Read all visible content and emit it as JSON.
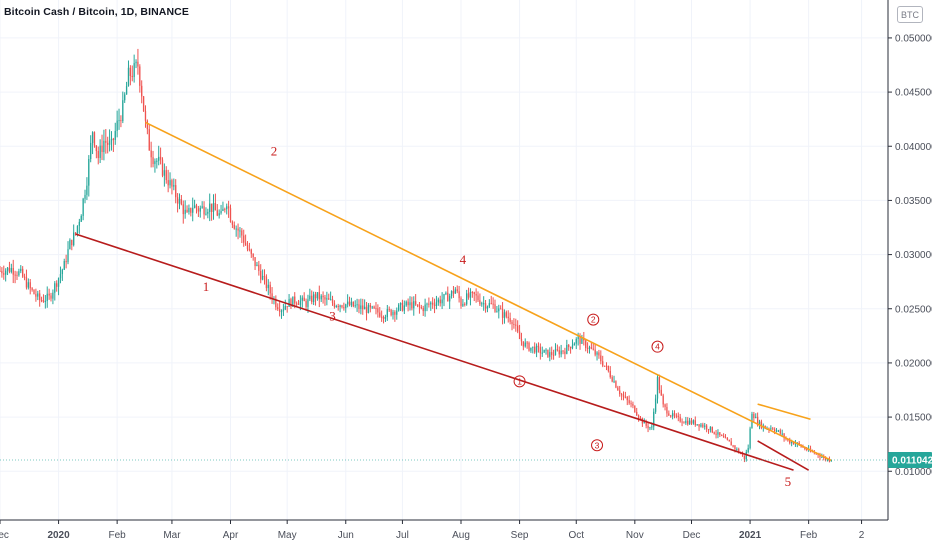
{
  "header": {
    "title": "Bitcoin Cash / Bitcoin, 1D, BINANCE",
    "currency_badge": "BTC"
  },
  "colors": {
    "up": "#26a69a",
    "down": "#ef5350",
    "orange_trend": "#f7a21b",
    "red_trend": "#b71c1c",
    "label": "#c81c1c",
    "last_price_bg": "#26a69a"
  },
  "chart_data": {
    "type": "candlestick",
    "title": "Bitcoin Cash / Bitcoin, 1D, BINANCE",
    "xlabel": "",
    "ylabel": "",
    "ylim": [
      0.0055,
      0.0535
    ],
    "y_ticks": [
      "0.050000",
      "0.045000",
      "0.040000",
      "0.035000",
      "0.030000",
      "0.025000",
      "0.020000",
      "0.015000",
      "0.010000"
    ],
    "y_tick_values": [
      0.05,
      0.045,
      0.04,
      0.035,
      0.03,
      0.025,
      0.02,
      0.015,
      0.01
    ],
    "x_ticks": [
      "Dec",
      "2020",
      "Feb",
      "Mar",
      "Apr",
      "May",
      "Jun",
      "Jul",
      "Aug",
      "Sep",
      "Oct",
      "Nov",
      "Dec",
      "2021",
      "Feb",
      "2"
    ],
    "x_tick_days": [
      -31,
      0,
      31,
      60,
      91,
      121,
      152,
      182,
      213,
      244,
      274,
      305,
      335,
      366,
      397,
      425
    ],
    "x_range_days": [
      -31,
      439
    ],
    "last_price": "0.011042",
    "last_price_value": 0.011042,
    "series_close": [
      [
        -31,
        0.0285
      ],
      [
        -25,
        0.0287
      ],
      [
        -20,
        0.0282
      ],
      [
        -15,
        0.0268
      ],
      [
        -10,
        0.0258
      ],
      [
        -5,
        0.026
      ],
      [
        -1,
        0.0275
      ],
      [
        3,
        0.029
      ],
      [
        6,
        0.031
      ],
      [
        9,
        0.032
      ],
      [
        12,
        0.034
      ],
      [
        15,
        0.037
      ],
      [
        18,
        0.0415
      ],
      [
        21,
        0.039
      ],
      [
        24,
        0.0405
      ],
      [
        28,
        0.04
      ],
      [
        31,
        0.042
      ],
      [
        34,
        0.0435
      ],
      [
        37,
        0.0465
      ],
      [
        40,
        0.047
      ],
      [
        42,
        0.0475
      ],
      [
        44,
        0.045
      ],
      [
        46,
        0.042
      ],
      [
        48,
        0.04
      ],
      [
        50,
        0.039
      ],
      [
        53,
        0.0385
      ],
      [
        56,
        0.0375
      ],
      [
        59,
        0.0365
      ],
      [
        62,
        0.0355
      ],
      [
        65,
        0.0345
      ],
      [
        68,
        0.0335
      ],
      [
        71,
        0.0345
      ],
      [
        74,
        0.0342
      ],
      [
        77,
        0.0343
      ],
      [
        80,
        0.0345
      ],
      [
        83,
        0.034
      ],
      [
        86,
        0.0335
      ],
      [
        89,
        0.035
      ],
      [
        91,
        0.0335
      ],
      [
        94,
        0.0325
      ],
      [
        97,
        0.0318
      ],
      [
        100,
        0.0305
      ],
      [
        103,
        0.0295
      ],
      [
        106,
        0.0285
      ],
      [
        109,
        0.0275
      ],
      [
        112,
        0.0265
      ],
      [
        115,
        0.0255
      ],
      [
        118,
        0.025
      ],
      [
        121,
        0.0255
      ],
      [
        126,
        0.0258
      ],
      [
        131,
        0.0255
      ],
      [
        136,
        0.0262
      ],
      [
        141,
        0.0258
      ],
      [
        146,
        0.0255
      ],
      [
        152,
        0.0254
      ],
      [
        157,
        0.0252
      ],
      [
        162,
        0.025
      ],
      [
        167,
        0.0248
      ],
      [
        172,
        0.0245
      ],
      [
        177,
        0.0248
      ],
      [
        182,
        0.0252
      ],
      [
        187,
        0.0254
      ],
      [
        192,
        0.025
      ],
      [
        197,
        0.0255
      ],
      [
        202,
        0.0258
      ],
      [
        207,
        0.0262
      ],
      [
        210,
        0.0268
      ],
      [
        213,
        0.0255
      ],
      [
        216,
        0.026
      ],
      [
        220,
        0.0262
      ],
      [
        225,
        0.0255
      ],
      [
        230,
        0.0253
      ],
      [
        235,
        0.0245
      ],
      [
        240,
        0.024
      ],
      [
        244,
        0.0222
      ],
      [
        248,
        0.0215
      ],
      [
        252,
        0.0213
      ],
      [
        256,
        0.021
      ],
      [
        260,
        0.0208
      ],
      [
        264,
        0.021
      ],
      [
        268,
        0.0212
      ],
      [
        272,
        0.0218
      ],
      [
        275,
        0.0222
      ],
      [
        278,
        0.0218
      ],
      [
        282,
        0.0212
      ],
      [
        286,
        0.0205
      ],
      [
        290,
        0.0195
      ],
      [
        294,
        0.0183
      ],
      [
        298,
        0.017
      ],
      [
        302,
        0.0163
      ],
      [
        305,
        0.0157
      ],
      [
        308,
        0.0148
      ],
      [
        311,
        0.0142
      ],
      [
        314,
        0.014
      ],
      [
        317,
        0.0185
      ],
      [
        320,
        0.016
      ],
      [
        324,
        0.0152
      ],
      [
        328,
        0.0148
      ],
      [
        332,
        0.0146
      ],
      [
        336,
        0.0145
      ],
      [
        340,
        0.0143
      ],
      [
        344,
        0.014
      ],
      [
        348,
        0.0135
      ],
      [
        352,
        0.013
      ],
      [
        356,
        0.0125
      ],
      [
        360,
        0.0118
      ],
      [
        363,
        0.0112
      ],
      [
        365,
        0.0122
      ],
      [
        367,
        0.0155
      ],
      [
        370,
        0.0145
      ],
      [
        374,
        0.014
      ],
      [
        378,
        0.014
      ],
      [
        382,
        0.0135
      ],
      [
        386,
        0.0128
      ],
      [
        390,
        0.0126
      ],
      [
        394,
        0.0122
      ],
      [
        398,
        0.0118
      ],
      [
        402,
        0.0116
      ],
      [
        405,
        0.0112
      ],
      [
        409,
        0.011042
      ]
    ],
    "trendlines": [
      {
        "color": "orange",
        "points": [
          [
            46,
            0.0422
          ],
          [
            409,
            0.011
          ]
        ]
      },
      {
        "color": "red",
        "points": [
          [
            9,
            0.0319
          ],
          [
            389,
            0.0101
          ]
        ]
      },
      {
        "color": "orange",
        "points": [
          [
            370,
            0.0162
          ],
          [
            398,
            0.0148
          ]
        ]
      },
      {
        "color": "red",
        "points": [
          [
            370,
            0.0128
          ],
          [
            397,
            0.0101
          ]
        ]
      }
    ],
    "annotations": [
      {
        "text": "1",
        "x": 78,
        "y": 0.027,
        "style": "plain"
      },
      {
        "text": "2",
        "x": 114,
        "y": 0.0395,
        "style": "plain"
      },
      {
        "text": "3",
        "x": 145,
        "y": 0.0243,
        "style": "plain"
      },
      {
        "text": "4",
        "x": 214,
        "y": 0.0295,
        "style": "plain"
      },
      {
        "text": "5",
        "x": 386,
        "y": 0.009,
        "style": "plain"
      },
      {
        "text": "1",
        "x": 244,
        "y": 0.0183,
        "style": "circled"
      },
      {
        "text": "2",
        "x": 283,
        "y": 0.024,
        "style": "circled"
      },
      {
        "text": "3",
        "x": 285,
        "y": 0.0124,
        "style": "circled"
      },
      {
        "text": "4",
        "x": 317,
        "y": 0.0215,
        "style": "circled"
      }
    ]
  }
}
